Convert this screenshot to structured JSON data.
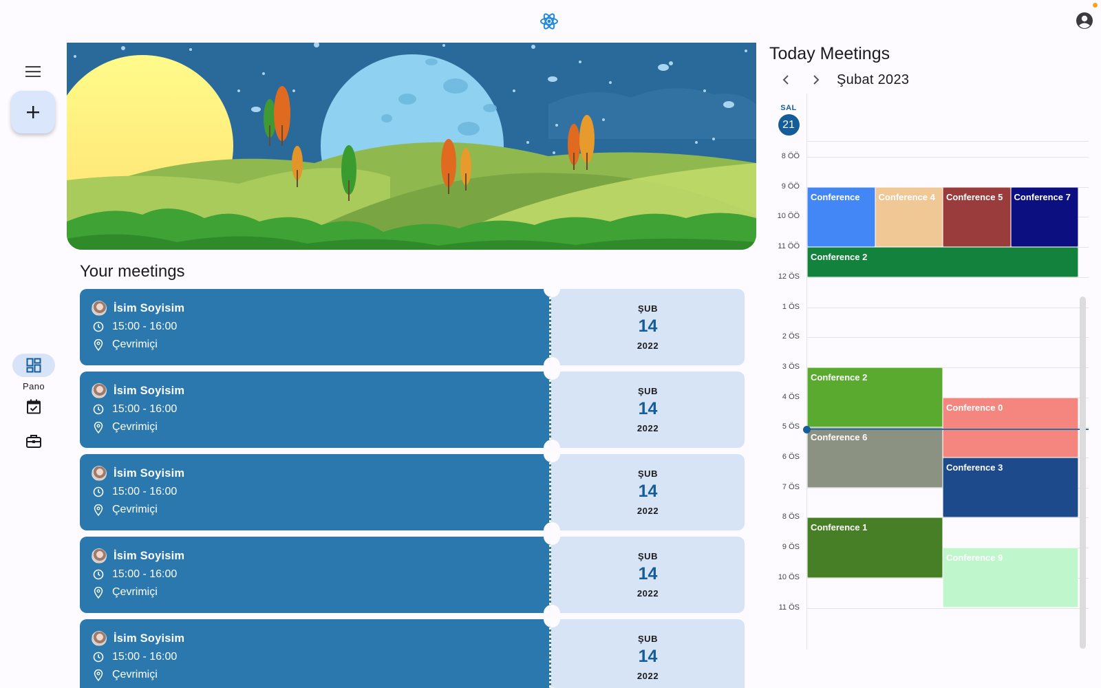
{
  "topbar": {
    "logo_icon": "atom-icon",
    "account_icon": "account-circle-icon"
  },
  "rail": {
    "menu_icon": "menu-icon",
    "fab_icon": "plus-icon",
    "items": [
      {
        "label": "Pano",
        "icon": "dashboard-icon",
        "active": true
      },
      {
        "label": "",
        "icon": "calendar-check-icon",
        "active": false
      },
      {
        "label": "",
        "icon": "briefcase-icon",
        "active": false
      }
    ]
  },
  "meetings": {
    "title": "Your meetings",
    "items": [
      {
        "name": "İsim Soyisim",
        "time": "15:00 - 16:00",
        "location": "Çevrimiçi",
        "month": "ŞUB",
        "day": "14",
        "year": "2022"
      },
      {
        "name": "İsim Soyisim",
        "time": "15:00 - 16:00",
        "location": "Çevrimiçi",
        "month": "ŞUB",
        "day": "14",
        "year": "2022"
      },
      {
        "name": "İsim Soyisim",
        "time": "15:00 - 16:00",
        "location": "Çevrimiçi",
        "month": "ŞUB",
        "day": "14",
        "year": "2022"
      },
      {
        "name": "İsim Soyisim",
        "time": "15:00 - 16:00",
        "location": "Çevrimiçi",
        "month": "ŞUB",
        "day": "14",
        "year": "2022"
      },
      {
        "name": "İsim Soyisim",
        "time": "15:00 - 16:00",
        "location": "Çevrimiçi",
        "month": "ŞUB",
        "day": "14",
        "year": "2022"
      }
    ]
  },
  "calendar": {
    "title": "Today Meetings",
    "month_label": "Şubat 2023",
    "day_of_week": "SAL",
    "day_number": "21",
    "hours": [
      "8 ÖÖ",
      "9 ÖÖ",
      "10 ÖÖ",
      "11 ÖÖ",
      "12 ÖS",
      "1 ÖS",
      "2 ÖS",
      "3 ÖS",
      "4 ÖS",
      "5 ÖS",
      "6 ÖS",
      "7 ÖS",
      "8 ÖS",
      "9 ÖS",
      "10 ÖS",
      "11 ÖS"
    ],
    "events": [
      {
        "title": "Conference",
        "start": 9,
        "end": 11,
        "col": 0,
        "cols": 4,
        "span": 1,
        "color": "#4287f5"
      },
      {
        "title": "Conference 4",
        "start": 9,
        "end": 11,
        "col": 1,
        "cols": 4,
        "span": 1,
        "color": "#f0c896"
      },
      {
        "title": "Conference 5",
        "start": 9,
        "end": 11,
        "col": 2,
        "cols": 4,
        "span": 1,
        "color": "#9a3c3c"
      },
      {
        "title": "Conference 7",
        "start": 9,
        "end": 11,
        "col": 3,
        "cols": 4,
        "span": 1,
        "color": "#0b0f80"
      },
      {
        "title": "Conference 2",
        "start": 11,
        "end": 12,
        "col": 0,
        "cols": 1,
        "span": 1,
        "color": "#12823c"
      },
      {
        "title": "Conference 2",
        "start": 15,
        "end": 17,
        "col": 0,
        "cols": 2,
        "span": 1,
        "color": "#5aaa30"
      },
      {
        "title": "Conference 0",
        "start": 16,
        "end": 18,
        "col": 1,
        "cols": 2,
        "span": 1,
        "color": "#f4867f"
      },
      {
        "title": "Conference 6",
        "start": 17,
        "end": 19,
        "col": 0,
        "cols": 2,
        "span": 1,
        "color": "#8c9281"
      },
      {
        "title": "Conference 3",
        "start": 18,
        "end": 20,
        "col": 1,
        "cols": 2,
        "span": 1,
        "color": "#1c4a8a"
      },
      {
        "title": "Conference 1",
        "start": 20,
        "end": 22,
        "col": 0,
        "cols": 2,
        "span": 1,
        "color": "#477f26"
      },
      {
        "title": "Conference 9",
        "start": 21,
        "end": 23,
        "col": 1,
        "cols": 2,
        "span": 1,
        "color": "#c0f6cc"
      }
    ],
    "now_hour": 17.05
  }
}
